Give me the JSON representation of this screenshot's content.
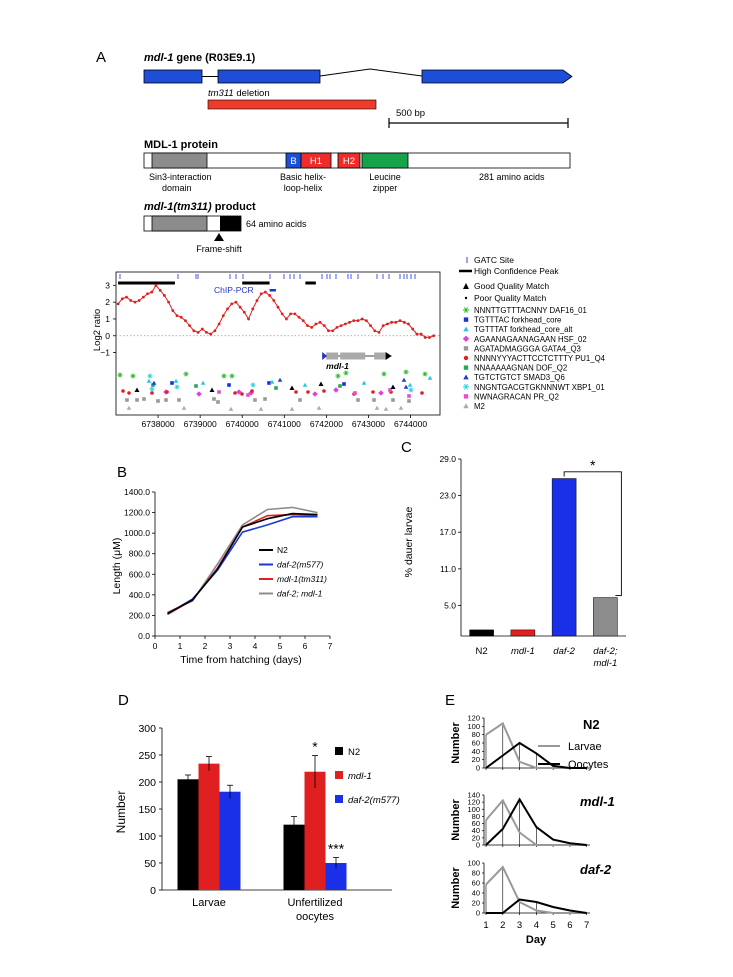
{
  "panels": {
    "a": "A",
    "b": "B",
    "c": "C",
    "d": "D",
    "e": "E"
  },
  "panelA": {
    "gene_title_em": "mdl-1",
    "gene_title_rest": " gene (R03E9.1)",
    "deletion_em": "tm311",
    "deletion_rest": " deletion",
    "scale_bar": "500 bp",
    "protein_title": "MDL-1 protein",
    "domain_B": "B",
    "domain_H1": "H1",
    "domain_H2": "H2",
    "sin3_line1": "Sin3-interaction",
    "sin3_line2": "domain",
    "bhlh_line1": "Basic helix-",
    "bhlh_line2": "loop-helix",
    "zip_line1": "Leucine",
    "zip_line2": "zipper",
    "aa_length": "281 amino acids",
    "product_em1": "mdl-1(tm311)",
    "product_rest": " product",
    "product_aa": "64 amino acids",
    "frameshift": "Frame-shift",
    "chip_label": "ChIP-PCR",
    "gene_label": "mdl-1",
    "ylabel": "Log2 ratio",
    "yticks": [
      "3",
      "2",
      "1",
      "0",
      "−1"
    ],
    "xticks": [
      "6738000",
      "6739000",
      "6740000",
      "6741000",
      "6742000",
      "6743000",
      "6744000"
    ],
    "legend_gatc": "GATC Site",
    "legend_peak": "High Confidence Peak",
    "legend_good": "Good Quality Match",
    "legend_poor": "Poor Quality Match",
    "motifs": [
      {
        "label": "NNNTTGTTTACNNY  DAF16_01",
        "color": "#33bb33",
        "shape": "asterisk"
      },
      {
        "label": "TGTTTAC  forkhead_core",
        "color": "#1a2fe0",
        "shape": "square"
      },
      {
        "label": "TGTTTAT  forkhead_core_alt",
        "color": "#22c8e0",
        "shape": "triangle"
      },
      {
        "label": "AGAANAGAANAGAAN  HSF_02",
        "color": "#e040e0",
        "shape": "diamond"
      },
      {
        "label": "AGATADMAGGGA  GATA4_Q3",
        "color": "#999999",
        "shape": "square"
      },
      {
        "label": "NNNNYYYACTTCCTCTTTY  PU1_Q4",
        "color": "#e02020",
        "shape": "circle"
      },
      {
        "label": "NNAAAAAGNAN  DOF_Q2",
        "color": "#22aa55",
        "shape": "square"
      },
      {
        "label": "TGTCTGTCT  SMAD3_Q6",
        "color": "#1a3ad0",
        "shape": "triangle"
      },
      {
        "label": "NNGNTGACGTGKNNNWT  XBP1_01",
        "color": "#33d0e0",
        "shape": "asterisk"
      },
      {
        "label": "NWNAGRACAN  PR_Q2",
        "color": "#e050d0",
        "shape": "square"
      },
      {
        "label": "M2",
        "color": "#aaaaaa",
        "shape": "triangle"
      }
    ]
  },
  "chart_data": [
    {
      "type": "line",
      "panel": "A",
      "ylabel": "Log2 ratio",
      "xlim": [
        6737000,
        6744700
      ],
      "ylim": [
        -1.8,
        3.2
      ],
      "x": [
        6737050,
        6737150,
        6737250,
        6737350,
        6737450,
        6737550,
        6737650,
        6737750,
        6737850,
        6737950,
        6738050,
        6738150,
        6738250,
        6738350,
        6738450,
        6738550,
        6738650,
        6738750,
        6738850,
        6738950,
        6739050,
        6739150,
        6739250,
        6739350,
        6739450,
        6739550,
        6739650,
        6739750,
        6739850,
        6739950,
        6740050,
        6740150,
        6740250,
        6740350,
        6740450,
        6740550,
        6740650,
        6740750,
        6740850,
        6740950,
        6741050,
        6741150,
        6741250,
        6741350,
        6741450,
        6741550,
        6741650,
        6741750,
        6741850,
        6741950,
        6742050,
        6742150,
        6742250,
        6742350,
        6742450,
        6742550,
        6742650,
        6742750,
        6742850,
        6742950,
        6743050,
        6743150,
        6743250,
        6743350,
        6743450,
        6743550,
        6743650,
        6743750,
        6743850,
        6743950,
        6744050,
        6744150,
        6744250,
        6744350,
        6744450,
        6744550
      ],
      "y": [
        1.9,
        2.2,
        2.3,
        2.1,
        2.0,
        2.1,
        2.3,
        2.5,
        2.6,
        3.0,
        2.7,
        2.4,
        2.0,
        1.5,
        1.2,
        1.1,
        0.9,
        0.6,
        0.3,
        0.2,
        0.4,
        0.2,
        0.1,
        0.3,
        0.7,
        1.2,
        1.6,
        1.9,
        2.0,
        1.7,
        1.4,
        1.0,
        1.6,
        2.1,
        2.5,
        2.6,
        2.4,
        2.1,
        1.7,
        1.3,
        1.0,
        1.3,
        1.3,
        1.1,
        0.9,
        0.6,
        0.5,
        0.7,
        0.8,
        0.6,
        0.3,
        0.3,
        0.5,
        0.6,
        0.7,
        0.8,
        0.9,
        0.9,
        1.0,
        0.9,
        0.6,
        0.3,
        0.2,
        0.6,
        0.7,
        0.8,
        0.8,
        0.9,
        0.8,
        0.7,
        0.4,
        0.1,
        0.1,
        -0.1,
        -0.1,
        0.0
      ],
      "peaks": [
        [
          6737050,
          6738400
        ],
        [
          6740000,
          6740650
        ],
        [
          6741500,
          6741750
        ]
      ],
      "chip_pcr": [
        6740650,
        6740800
      ],
      "gene": [
        6741900,
        6743550
      ]
    },
    {
      "type": "line",
      "panel": "B",
      "xlabel": "Time from hatching (days)",
      "ylabel": "Length (μM)",
      "ylim": [
        0,
        1400
      ],
      "yticks": [
        "0.0",
        "200.0",
        "400.0",
        "600.0",
        "800.0",
        "1000.0",
        "1200.0",
        "1400.0"
      ],
      "xticks": [
        "0",
        "1",
        "2",
        "3",
        "4",
        "5",
        "6",
        "7"
      ],
      "x": [
        0.5,
        1.5,
        2.5,
        3.5,
        4.5,
        5.5,
        6.5
      ],
      "series": [
        {
          "name": "N2",
          "em": false,
          "color": "#000000",
          "values": [
            220,
            350,
            650,
            1060,
            1140,
            1190,
            1180
          ]
        },
        {
          "name": "daf-2(m577)",
          "em": true,
          "color": "#1a3ad8",
          "values": [
            215,
            360,
            640,
            1010,
            1080,
            1160,
            1160
          ]
        },
        {
          "name": "mdl-1(tm311)",
          "em": true,
          "color": "#e02020",
          "values": [
            210,
            350,
            660,
            1060,
            1170,
            1180,
            1170
          ]
        },
        {
          "name": "daf-2; mdl-1",
          "em": true,
          "color": "#8c8c8c",
          "values": [
            230,
            340,
            700,
            1080,
            1230,
            1250,
            1200
          ]
        }
      ]
    },
    {
      "type": "bar",
      "panel": "C",
      "ylabel": "% dauer larvae",
      "ylim": [
        0,
        29
      ],
      "yticks": [
        "29.0",
        "23.0",
        "17.0",
        "11.0",
        "5.0"
      ],
      "categories": [
        "N2",
        "mdl-1",
        "daf-2",
        "daf-2; mdl-1"
      ],
      "cat_line1": [
        "N2",
        "mdl-1",
        "daf-2",
        "daf-2;"
      ],
      "cat_line2": [
        "",
        "",
        "",
        "mdl-1"
      ],
      "values": [
        1.0,
        1.0,
        25.8,
        6.3
      ],
      "colors": [
        "#000000",
        "#e02020",
        "#1a2fe8",
        "#8c8c8c"
      ],
      "significance": "*"
    },
    {
      "type": "bar",
      "panel": "D",
      "ylabel": "Number",
      "ylim": [
        0,
        300
      ],
      "yticks": [
        "0",
        "50",
        "100",
        "150",
        "200",
        "250",
        "300"
      ],
      "categories": [
        "Larvae",
        "Unfertilized oocytes"
      ],
      "cat_line1": [
        "Larvae",
        "Unfertilized"
      ],
      "cat_line2": [
        "",
        "oocytes"
      ],
      "series": [
        {
          "name": "N2",
          "em": false,
          "color": "#000000",
          "values": [
            205,
            121
          ],
          "errors": [
            8,
            15
          ],
          "sig": [
            "",
            ""
          ]
        },
        {
          "name": "mdl-1",
          "em": true,
          "color": "#e02020",
          "values": [
            234,
            219
          ],
          "errors": [
            13,
            30
          ],
          "sig": [
            "",
            "*"
          ]
        },
        {
          "name": "daf-2(m577)",
          "em": true,
          "color": "#1a2fe8",
          "values": [
            182,
            50
          ],
          "errors": [
            12,
            10
          ],
          "sig": [
            "",
            "***"
          ]
        }
      ]
    },
    {
      "type": "line",
      "panel": "E",
      "xlabel": "Day",
      "ylabel": "Number",
      "xticks": [
        "1",
        "2",
        "3",
        "4",
        "5",
        "6",
        "7"
      ],
      "yticks": [
        "0",
        "20",
        "40",
        "60",
        "80",
        "100",
        "120",
        "140"
      ],
      "ylim": [
        0,
        140
      ],
      "legend": [
        "Larvae",
        "Oocytes"
      ],
      "subplots": [
        {
          "title": "N2",
          "em": false,
          "ymax_tick": "120",
          "yticks_sub": [
            "0",
            "20",
            "40",
            "60",
            "80",
            "100",
            "120"
          ],
          "ymax": 120,
          "larvae": [
            80,
            107,
            15,
            0,
            0,
            0,
            0
          ],
          "oocytes": [
            0,
            30,
            60,
            35,
            5,
            0,
            0
          ]
        },
        {
          "title": "mdl-1",
          "em": true,
          "ymax_tick": "140",
          "yticks_sub": [
            "0",
            "20",
            "40",
            "60",
            "80",
            "100",
            "120",
            "140"
          ],
          "ymax": 140,
          "larvae": [
            70,
            125,
            35,
            0,
            0,
            0,
            0
          ],
          "oocytes": [
            0,
            45,
            128,
            50,
            15,
            5,
            0
          ]
        },
        {
          "title": "daf-2",
          "em": true,
          "ymax_tick": "100",
          "yticks_sub": [
            "0",
            "20",
            "40",
            "60",
            "80",
            "100"
          ],
          "ymax": 100,
          "larvae": [
            57,
            92,
            22,
            5,
            0,
            0,
            0
          ],
          "oocytes": [
            0,
            0,
            27,
            22,
            12,
            5,
            0
          ]
        }
      ]
    }
  ]
}
